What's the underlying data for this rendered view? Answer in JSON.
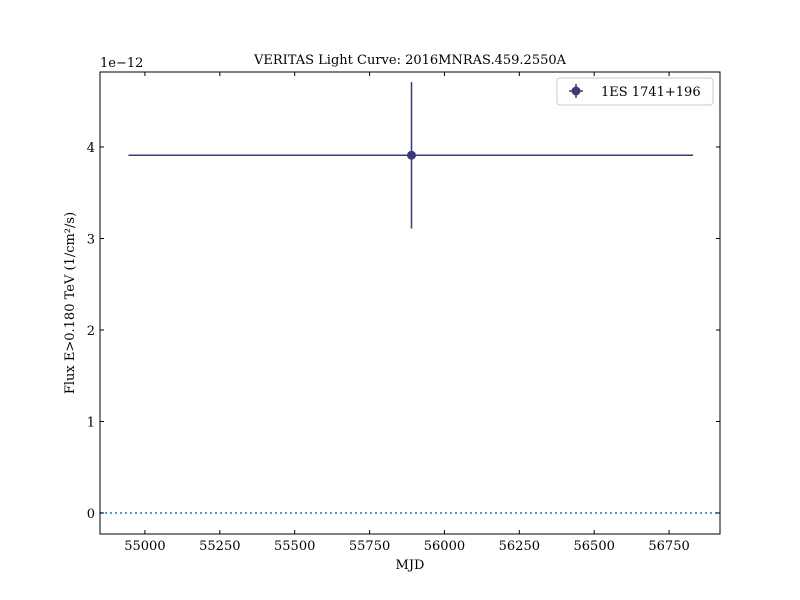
{
  "chart_data": {
    "type": "scatter",
    "title": "VERITAS Light Curve: 2016MNRAS.459.2550A",
    "xlabel": "MJD",
    "ylabel": "Flux E>0.180 TeV (1/cm²/s)",
    "y_offset_label": "1e−12",
    "xlim": [
      54850,
      56920
    ],
    "ylim": [
      -0.23,
      4.82
    ],
    "x_ticks": [
      55000,
      55250,
      55500,
      55750,
      56000,
      56250,
      56500,
      56750
    ],
    "x_tick_labels": [
      "55000",
      "55250",
      "55500",
      "55750",
      "56000",
      "56250",
      "56500",
      "56750"
    ],
    "y_ticks": [
      0,
      1,
      2,
      3,
      4
    ],
    "y_tick_labels": [
      "0",
      "1",
      "2",
      "3",
      "4"
    ],
    "y_units_scale": "1e-12",
    "grid": false,
    "legend_position": "top-right",
    "series": [
      {
        "name": "1ES 1741+196",
        "color": "#3a3a78",
        "points": [
          {
            "x": 55890,
            "x_low": 54945,
            "x_high": 56830,
            "y": 3.91,
            "y_low": 3.11,
            "y_high": 4.71
          }
        ]
      }
    ],
    "reference_line": {
      "y": 0,
      "style": "dotted",
      "color": "#1f77b4"
    }
  }
}
